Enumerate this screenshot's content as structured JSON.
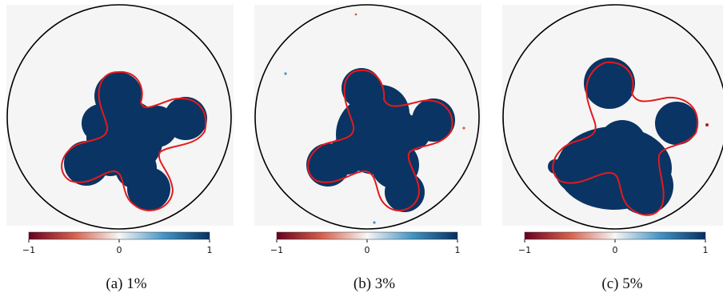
{
  "colorbar": {
    "min_label": "−1",
    "mid_label": "0",
    "max_label": "1",
    "colors": [
      "#67001f",
      "#d6604d",
      "#f7f7f7",
      "#4393c3",
      "#053061"
    ]
  },
  "colors": {
    "blob": "#0a3463",
    "true_boundary": "#e41a1c",
    "domain_circle": "#000000",
    "background": "#f5f5f5"
  },
  "panels": [
    {
      "caption": "(a) 1%"
    },
    {
      "caption": "(b) 3%"
    },
    {
      "caption": "(c) 5%"
    }
  ]
}
